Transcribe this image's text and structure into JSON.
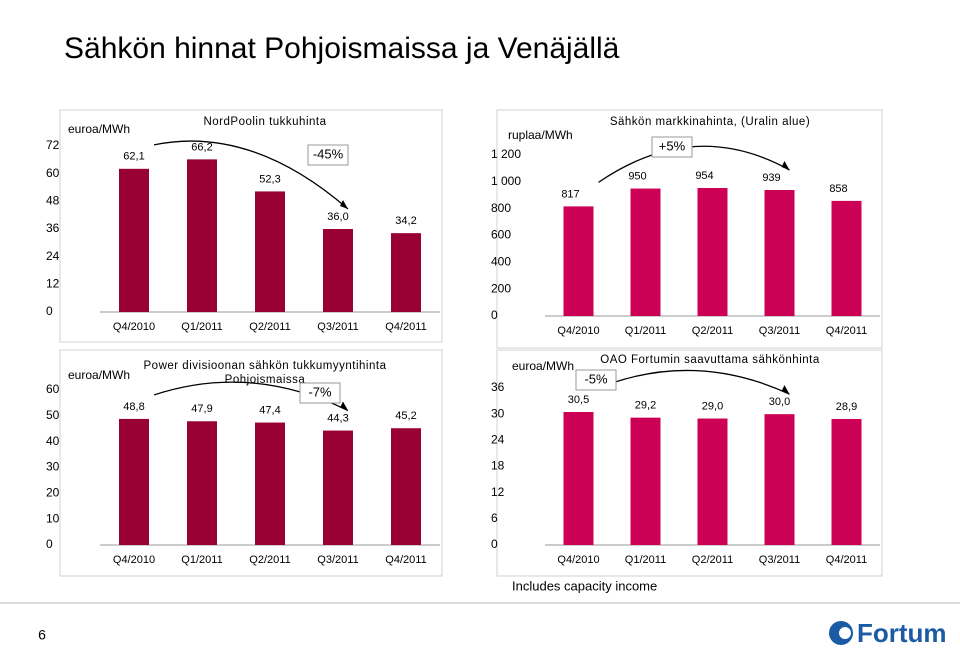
{
  "title": "Sähkön hinnat Pohjoismaissa ja Venäjällä",
  "chart_data": [
    {
      "type": "bar",
      "title": "NordPoolin tukkuhinta",
      "y_label": "euroa/MWh",
      "categories": [
        "Q4/2010",
        "Q1/2011",
        "Q2/2011",
        "Q3/2011",
        "Q4/2011"
      ],
      "values": [
        62.1,
        66.2,
        52.3,
        36.0,
        34.2
      ],
      "value_labels": [
        "62,1",
        "66,2",
        "52,3",
        "36,0",
        "34,2"
      ],
      "color": "#990033",
      "ylim": [
        0,
        72
      ],
      "yticks": [
        0,
        12,
        24,
        36,
        48,
        60,
        72
      ],
      "annotation": "-45%"
    },
    {
      "type": "bar",
      "title": "Sähkön markkinahinta, (Uralin alue)",
      "y_label": "ruplaa/MWh",
      "categories": [
        "Q4/2010",
        "Q1/2011",
        "Q2/2011",
        "Q3/2011",
        "Q4/2011"
      ],
      "values": [
        817,
        950,
        954,
        939,
        858
      ],
      "color": "#cc0055",
      "ylim": [
        0,
        1200
      ],
      "yticks": [
        0,
        200,
        400,
        600,
        800,
        {
          "value": 1000,
          "label": "1 000"
        },
        {
          "value": 1200,
          "label": "1 200"
        }
      ],
      "annotation": "+5%"
    },
    {
      "type": "bar",
      "title": [
        "Power divisioonan sähkön tukkumyyntihinta",
        "Pohjoismaissa"
      ],
      "y_label": "euroa/MWh",
      "categories": [
        "Q4/2010",
        "Q1/2011",
        "Q2/2011",
        "Q3/2011",
        "Q4/2011"
      ],
      "values": [
        48.8,
        47.9,
        47.4,
        44.3,
        45.2
      ],
      "value_labels": [
        "48,8",
        "47,9",
        "47,4",
        "44,3",
        "45,2"
      ],
      "color": "#990033",
      "ylim": [
        0,
        60
      ],
      "yticks": [
        0,
        10,
        20,
        30,
        40,
        50,
        60
      ],
      "annotation": "-7%"
    },
    {
      "type": "bar",
      "title": "OAO Fortumin saavuttama sähkönhinta",
      "y_label": "euroa/MWh",
      "categories": [
        "Q4/2010",
        "Q1/2011",
        "Q2/2011",
        "Q3/2011",
        "Q4/2011"
      ],
      "values": [
        30.5,
        29.2,
        29.0,
        30.0,
        28.9
      ],
      "value_labels": [
        "30,5",
        "29,2",
        "29,0",
        "30,0",
        "28,9"
      ],
      "color": "#cc0055",
      "ylim": [
        0,
        36
      ],
      "yticks": [
        0,
        6,
        12,
        18,
        24,
        30,
        36
      ],
      "annotation": "-5%"
    }
  ],
  "footnote": "Includes capacity income",
  "page_number": "6",
  "logo": "Fortum"
}
